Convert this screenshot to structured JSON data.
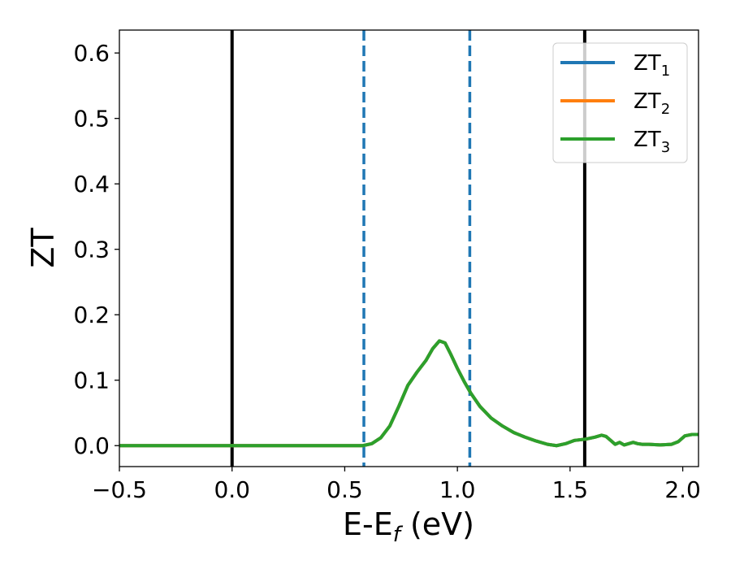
{
  "chart_data": {
    "type": "line",
    "xlabel": "E-E",
    "xlabel_sub": "f",
    "xlabel_unit": " (eV)",
    "ylabel": "ZT",
    "xlim": [
      -0.5,
      2.07
    ],
    "ylim": [
      -0.032,
      0.635
    ],
    "xticks": [
      -0.5,
      0.0,
      0.5,
      1.0,
      1.5,
      2.0
    ],
    "xtick_labels": [
      "−0.5",
      "0.0",
      "0.5",
      "1.0",
      "1.5",
      "2.0"
    ],
    "yticks": [
      0.0,
      0.1,
      0.2,
      0.3,
      0.4,
      0.5,
      0.6
    ],
    "ytick_labels": [
      "0.0",
      "0.1",
      "0.2",
      "0.3",
      "0.4",
      "0.5",
      "0.6"
    ],
    "grid": false,
    "legend_position": "top-right",
    "vertical_lines": [
      {
        "x": 0.0,
        "style": "solid",
        "color": "#000000"
      },
      {
        "x": 0.585,
        "style": "dashed",
        "color": "#1f77b4"
      },
      {
        "x": 1.055,
        "style": "dashed",
        "color": "#1f77b4"
      },
      {
        "x": 1.565,
        "style": "solid",
        "color": "#000000"
      }
    ],
    "x": [
      -0.5,
      0.0,
      0.5,
      0.58,
      0.62,
      0.66,
      0.7,
      0.74,
      0.78,
      0.82,
      0.86,
      0.89,
      0.92,
      0.945,
      0.97,
      1.0,
      1.03,
      1.06,
      1.1,
      1.15,
      1.2,
      1.25,
      1.3,
      1.35,
      1.4,
      1.44,
      1.48,
      1.52,
      1.57,
      1.61,
      1.64,
      1.66,
      1.68,
      1.7,
      1.72,
      1.74,
      1.76,
      1.78,
      1.8,
      1.82,
      1.85,
      1.9,
      1.95,
      1.98,
      2.01,
      2.04,
      2.07
    ],
    "series": [
      {
        "name": "ZT",
        "sub": "1",
        "color": "#1f77b4",
        "values": [
          0.0,
          0.0,
          0.0,
          0.0,
          0.003,
          0.012,
          0.03,
          0.06,
          0.092,
          0.112,
          0.13,
          0.148,
          0.16,
          0.157,
          0.14,
          0.118,
          0.098,
          0.08,
          0.06,
          0.042,
          0.03,
          0.02,
          0.013,
          0.007,
          0.002,
          0.0,
          0.003,
          0.008,
          0.01,
          0.013,
          0.016,
          0.014,
          0.008,
          0.002,
          0.005,
          0.001,
          0.003,
          0.005,
          0.003,
          0.002,
          0.002,
          0.001,
          0.002,
          0.006,
          0.015,
          0.017,
          0.017
        ]
      },
      {
        "name": "ZT",
        "sub": "2",
        "color": "#ff7f0e",
        "values": [
          0.0,
          0.0,
          0.0,
          0.0,
          0.003,
          0.012,
          0.03,
          0.06,
          0.092,
          0.112,
          0.13,
          0.148,
          0.16,
          0.157,
          0.14,
          0.118,
          0.098,
          0.08,
          0.06,
          0.042,
          0.03,
          0.02,
          0.013,
          0.007,
          0.002,
          0.0,
          0.003,
          0.008,
          0.01,
          0.013,
          0.016,
          0.014,
          0.008,
          0.002,
          0.005,
          0.001,
          0.003,
          0.005,
          0.003,
          0.002,
          0.002,
          0.001,
          0.002,
          0.006,
          0.015,
          0.017,
          0.017
        ]
      },
      {
        "name": "ZT",
        "sub": "3",
        "color": "#2ca02c",
        "values": [
          0.0,
          0.0,
          0.0,
          0.0,
          0.003,
          0.012,
          0.03,
          0.06,
          0.092,
          0.112,
          0.13,
          0.148,
          0.16,
          0.157,
          0.14,
          0.118,
          0.098,
          0.08,
          0.06,
          0.042,
          0.03,
          0.02,
          0.013,
          0.007,
          0.002,
          0.0,
          0.003,
          0.008,
          0.01,
          0.013,
          0.016,
          0.014,
          0.008,
          0.002,
          0.005,
          0.001,
          0.003,
          0.005,
          0.003,
          0.002,
          0.002,
          0.001,
          0.002,
          0.006,
          0.015,
          0.017,
          0.017
        ]
      }
    ]
  }
}
